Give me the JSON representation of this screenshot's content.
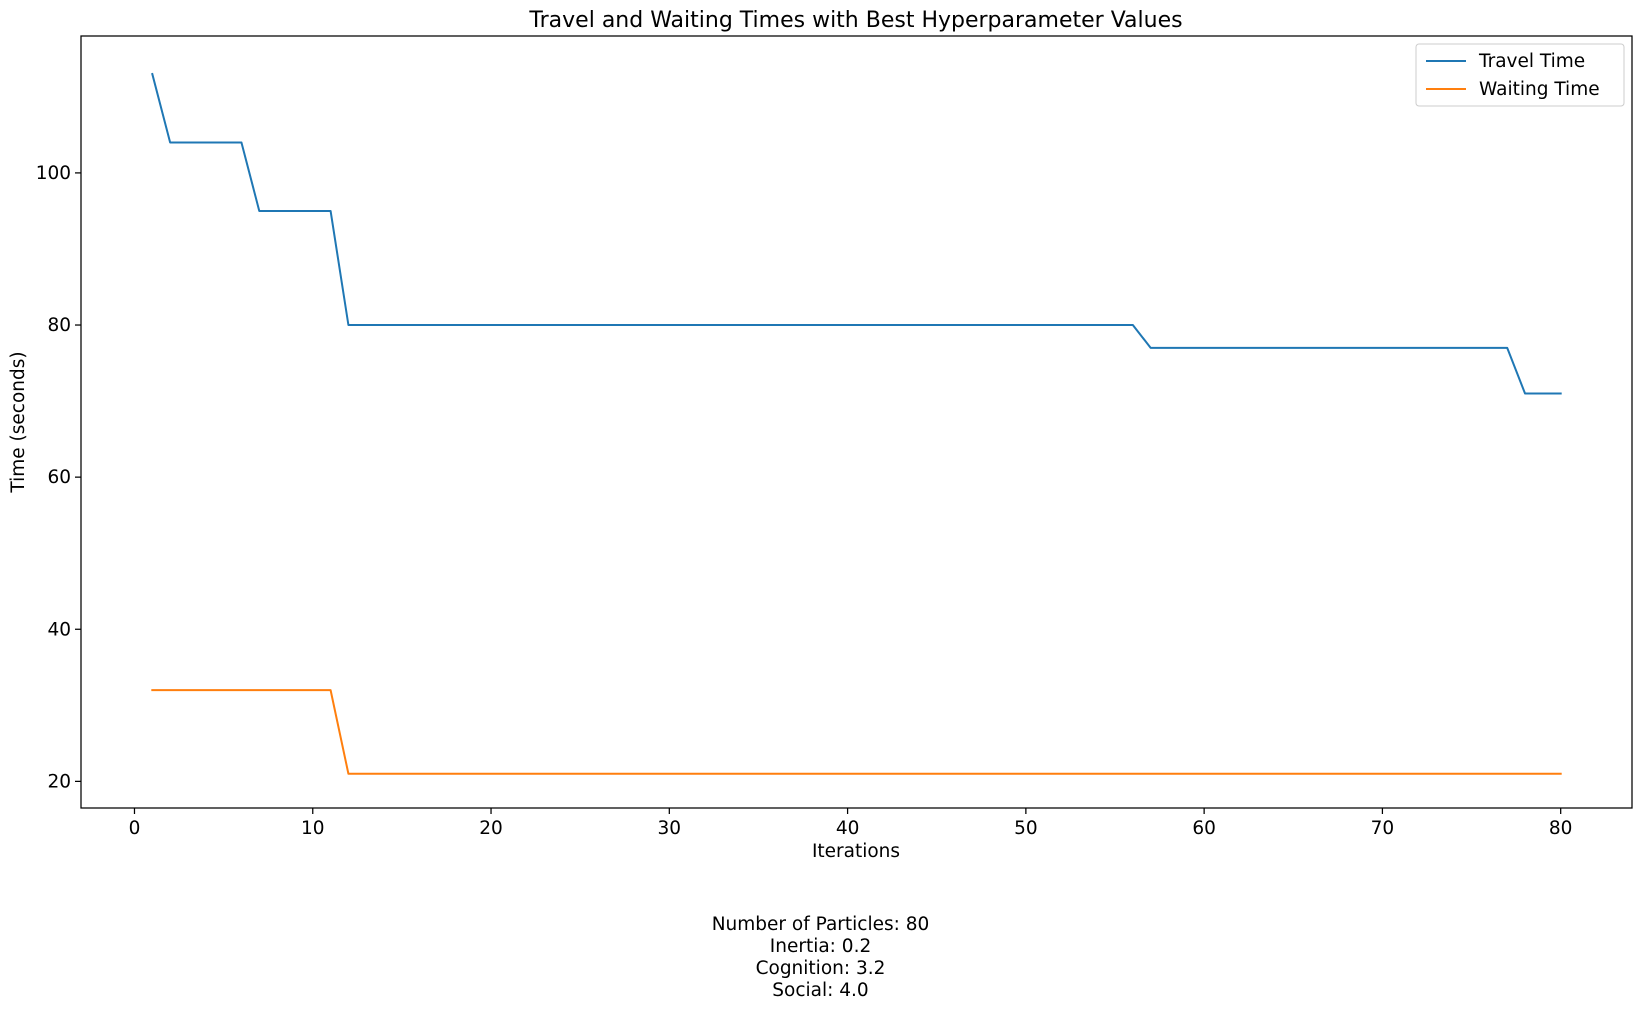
{
  "chart_data": {
    "type": "line",
    "title": "Travel and Waiting Times with Best Hyperparameter Values",
    "xlabel": "Iterations",
    "ylabel": "Time (seconds)",
    "xlim": [
      -3,
      84
    ],
    "ylim": [
      16.5,
      118
    ],
    "xticks": [
      0,
      10,
      20,
      30,
      40,
      50,
      60,
      70,
      80
    ],
    "yticks": [
      20,
      40,
      60,
      80,
      100
    ],
    "grid": false,
    "legend_position": "top-right",
    "series": [
      {
        "name": "Travel Time",
        "color": "#1f77b4",
        "points": [
          [
            1,
            113
          ],
          [
            2,
            104
          ],
          [
            6,
            104
          ],
          [
            7,
            95
          ],
          [
            11,
            95
          ],
          [
            12,
            80
          ],
          [
            56,
            80
          ],
          [
            57,
            77
          ],
          [
            77,
            77
          ],
          [
            78,
            71
          ],
          [
            80,
            71
          ]
        ]
      },
      {
        "name": "Waiting Time",
        "color": "#ff7f0e",
        "points": [
          [
            1,
            32
          ],
          [
            11,
            32
          ],
          [
            12,
            21
          ],
          [
            80,
            21
          ]
        ]
      }
    ]
  },
  "caption": {
    "lines": [
      "Number of Particles: 80",
      "Inertia: 0.2",
      "Cognition: 3.2",
      "Social: 4.0"
    ]
  }
}
